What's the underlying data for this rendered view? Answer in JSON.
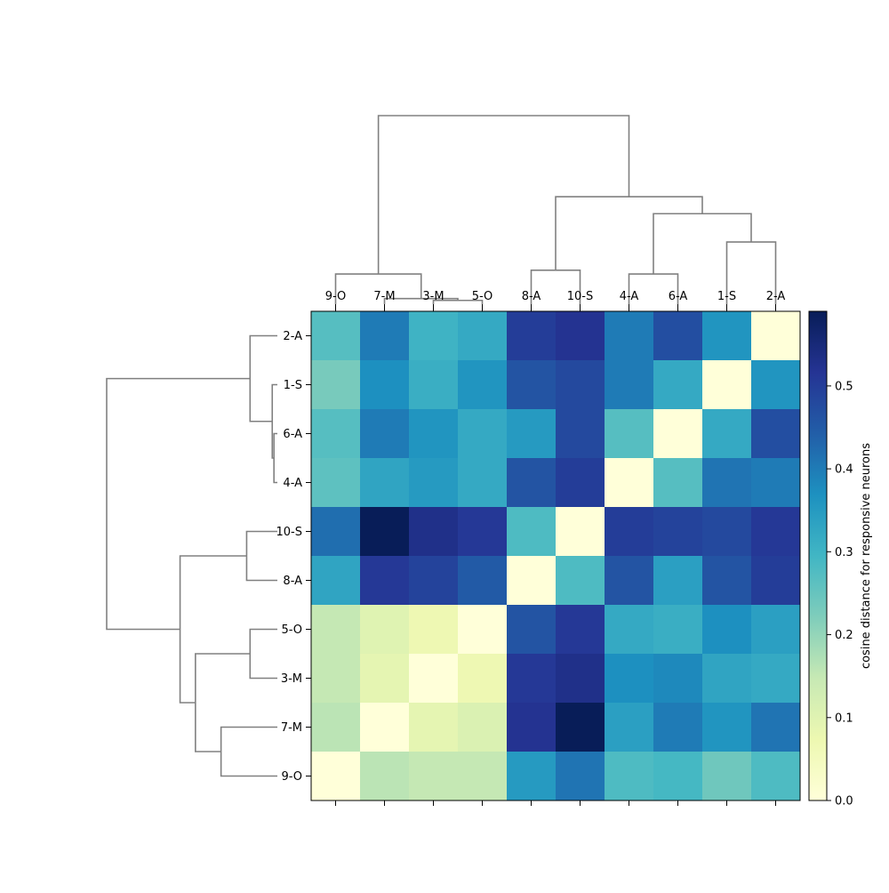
{
  "chart_data": {
    "type": "heatmap",
    "title": "",
    "col_labels": [
      "9-O",
      "7-M",
      "3-M",
      "5-O",
      "8-A",
      "10-S",
      "4-A",
      "6-A",
      "1-S",
      "2-A"
    ],
    "row_labels": [
      "2-A",
      "1-S",
      "6-A",
      "4-A",
      "10-S",
      "8-A",
      "5-O",
      "3-M",
      "7-M",
      "9-O"
    ],
    "values": [
      [
        0.27,
        0.4,
        0.3,
        0.32,
        0.5,
        0.52,
        0.4,
        0.47,
        0.36,
        0.0
      ],
      [
        0.23,
        0.37,
        0.31,
        0.36,
        0.46,
        0.48,
        0.4,
        0.32,
        0.0,
        0.36
      ],
      [
        0.27,
        0.4,
        0.36,
        0.32,
        0.35,
        0.48,
        0.27,
        0.0,
        0.32,
        0.47
      ],
      [
        0.26,
        0.33,
        0.35,
        0.32,
        0.46,
        0.5,
        0.0,
        0.27,
        0.41,
        0.4
      ],
      [
        0.42,
        0.59,
        0.53,
        0.51,
        0.28,
        0.0,
        0.5,
        0.49,
        0.48,
        0.51
      ],
      [
        0.33,
        0.51,
        0.49,
        0.45,
        0.0,
        0.28,
        0.46,
        0.34,
        0.46,
        0.5
      ],
      [
        0.15,
        0.1,
        0.07,
        0.0,
        0.46,
        0.51,
        0.32,
        0.31,
        0.37,
        0.34
      ],
      [
        0.15,
        0.09,
        0.0,
        0.07,
        0.51,
        0.53,
        0.37,
        0.38,
        0.33,
        0.32
      ],
      [
        0.16,
        0.0,
        0.09,
        0.11,
        0.52,
        0.59,
        0.34,
        0.4,
        0.36,
        0.41
      ],
      [
        0.0,
        0.16,
        0.15,
        0.15,
        0.35,
        0.41,
        0.28,
        0.29,
        0.24,
        0.28
      ]
    ],
    "colorbar": {
      "label": "cosine distance for responsive neurons",
      "range": [
        0.0,
        0.59
      ],
      "ticks": [
        0.0,
        0.1,
        0.2,
        0.3,
        0.4,
        0.5
      ],
      "tick_labels": [
        "0.0",
        "0.1",
        "0.2",
        "0.3",
        "0.4",
        "0.5"
      ],
      "colormap": "YlGnBu",
      "colormap_stops": [
        "#ffffd9",
        "#edf8b1",
        "#c7e9b4",
        "#7fcdbb",
        "#41b6c4",
        "#1d91c0",
        "#225ea8",
        "#253494",
        "#081d58"
      ]
    },
    "dendrogram_line_color": "#808080",
    "col_dendrogram": {
      "order": [
        "9-O",
        "7-M",
        "3-M",
        "5-O",
        "8-A",
        "10-S",
        "4-A",
        "6-A",
        "1-S",
        "2-A"
      ],
      "heights": [
        0.0,
        0.02,
        0.03,
        0.16,
        0.44,
        0.6,
        0.52,
        0.92,
        0.74,
        1.0
      ]
    },
    "row_dendrogram": {
      "order": [
        "2-A",
        "1-S",
        "6-A",
        "4-A",
        "10-S",
        "8-A",
        "5-O",
        "3-M",
        "7-M",
        "9-O"
      ],
      "heights": [
        0.0,
        0.02,
        0.03,
        0.16,
        0.44,
        0.6,
        0.52,
        0.92,
        0.74,
        1.0
      ]
    }
  }
}
